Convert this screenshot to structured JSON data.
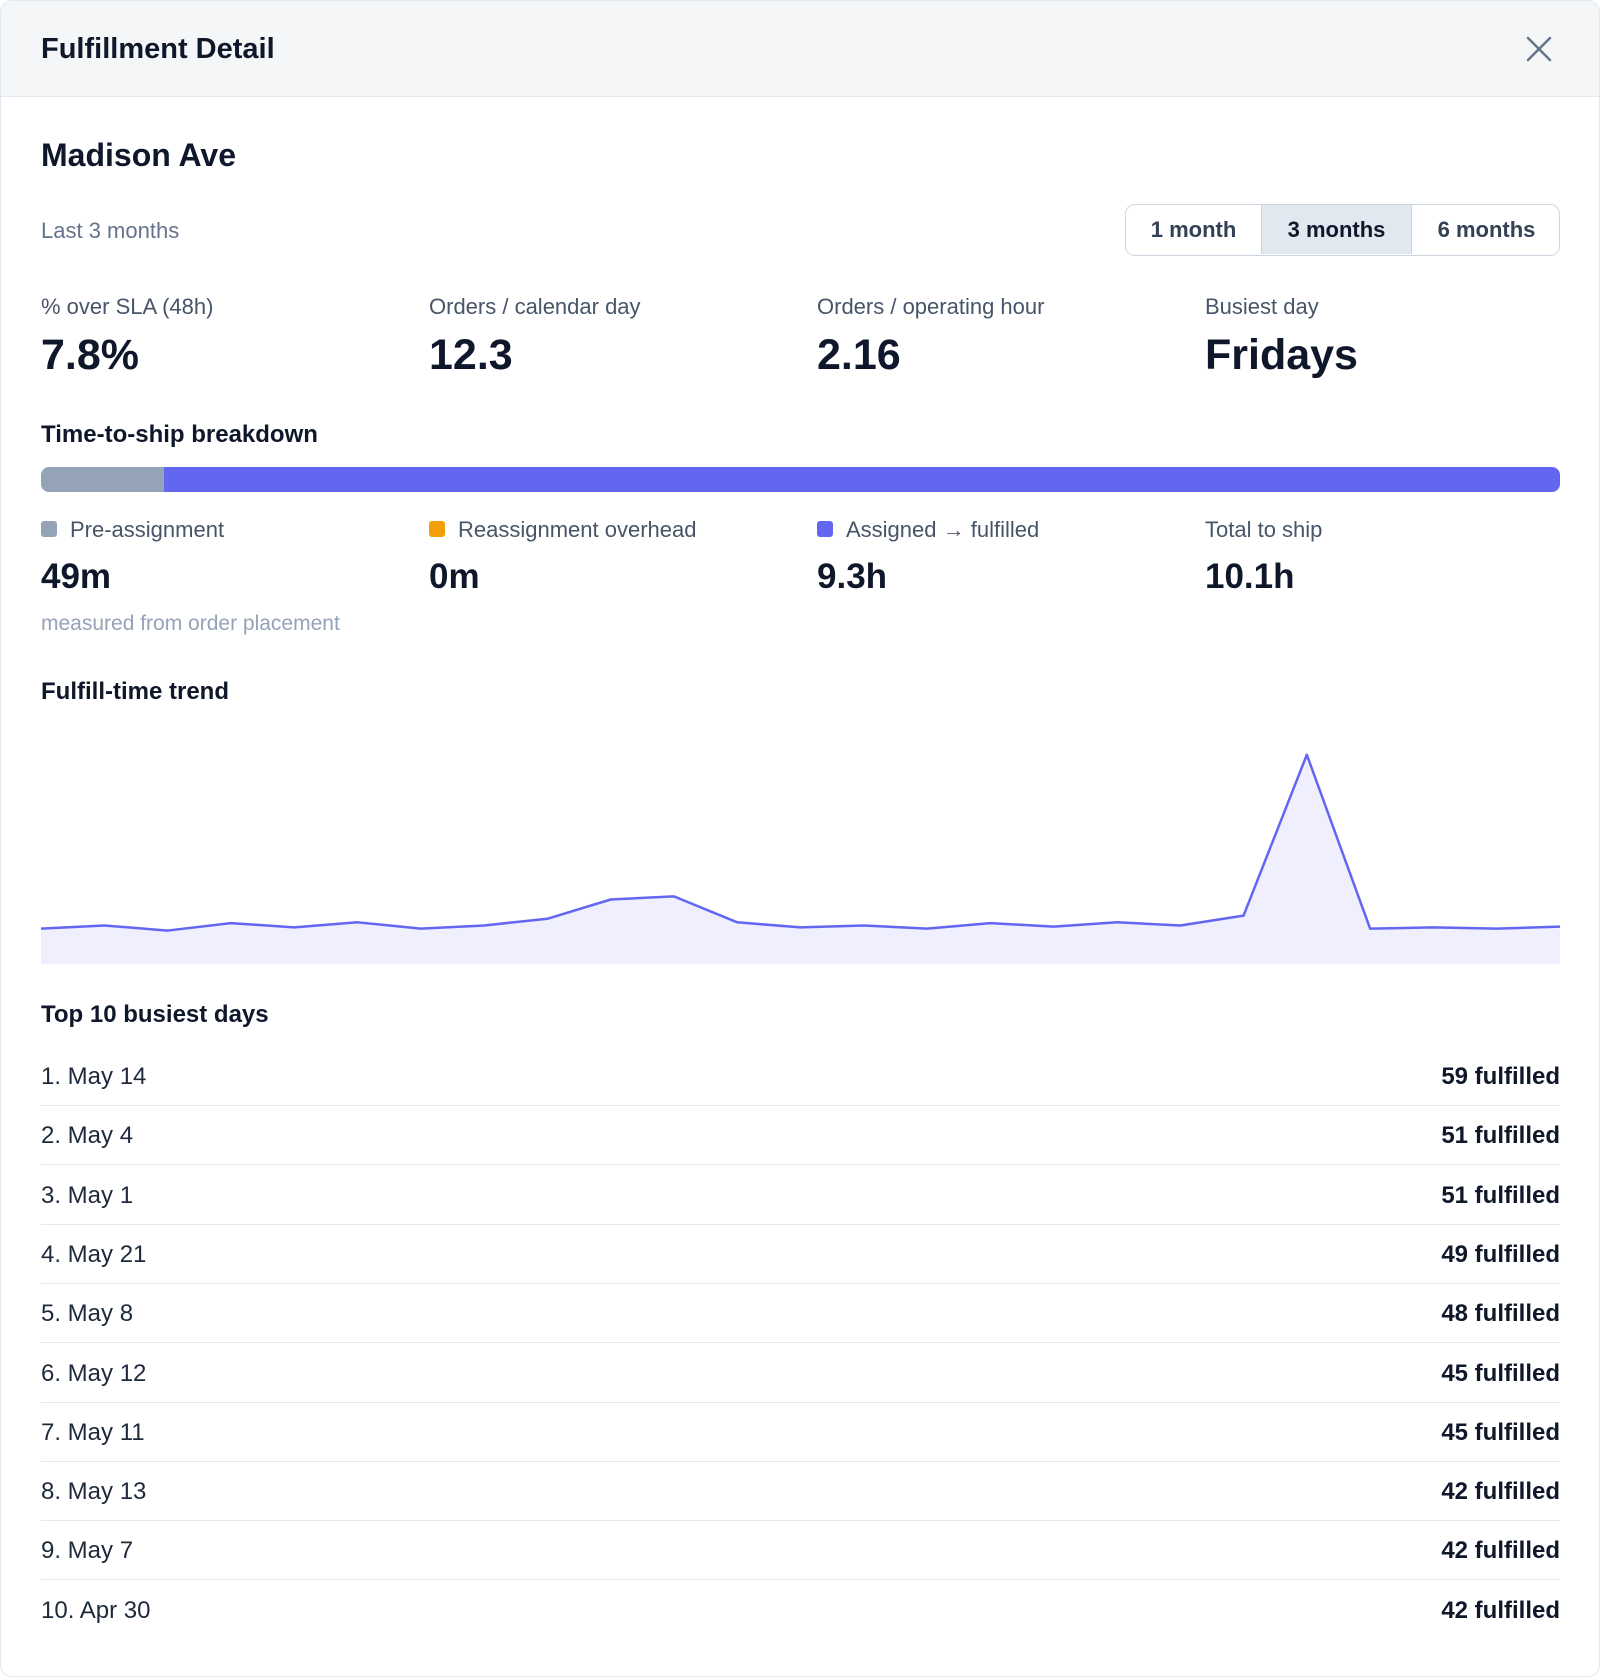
{
  "header": {
    "title": "Fulfillment Detail"
  },
  "location": "Madison Ave",
  "period": {
    "label": "Last 3 months",
    "options": [
      "1 month",
      "3 months",
      "6 months"
    ],
    "selected": 1
  },
  "stats": [
    {
      "label": "% over SLA (48h)",
      "value": "7.8%"
    },
    {
      "label": "Orders / calendar day",
      "value": "12.3"
    },
    {
      "label": "Orders / operating hour",
      "value": "2.16"
    },
    {
      "label": "Busiest day",
      "value": "Fridays"
    }
  ],
  "breakdown": {
    "title": "Time-to-ship breakdown",
    "segments": [
      {
        "name": "Pre-assignment",
        "color": "#94a3b8",
        "value": 49,
        "value_label": "49m"
      },
      {
        "name": "Reassignment overhead",
        "color": "#f59e0b",
        "value": 0,
        "value_label": "0m"
      },
      {
        "name": "Assigned → fulfilled",
        "color": "#6366f1",
        "value": 558,
        "value_label": "9.3h"
      }
    ],
    "total": {
      "label": "Total to ship",
      "value": "10.1h"
    },
    "note": "measured from order placement"
  },
  "chart_data": {
    "type": "area",
    "title": "Fulfill-time trend",
    "values": [
      9.0,
      9.8,
      8.5,
      10.4,
      9.3,
      10.6,
      9.0,
      9.8,
      11.5,
      16.4,
      17.2,
      10.6,
      9.3,
      9.8,
      9.0,
      10.4,
      9.5,
      10.6,
      9.8,
      12.3,
      53.2,
      9.0,
      9.3,
      9.0,
      9.5
    ],
    "ylim": [
      0,
      60
    ],
    "color": "#6366f1"
  },
  "top_days": {
    "title": "Top 10 busiest days",
    "rows": [
      {
        "day": "1. May 14",
        "count": "59 fulfilled"
      },
      {
        "day": "2. May 4",
        "count": "51 fulfilled"
      },
      {
        "day": "3. May 1",
        "count": "51 fulfilled"
      },
      {
        "day": "4. May 21",
        "count": "49 fulfilled"
      },
      {
        "day": "5. May 8",
        "count": "48 fulfilled"
      },
      {
        "day": "6. May 12",
        "count": "45 fulfilled"
      },
      {
        "day": "7. May 11",
        "count": "45 fulfilled"
      },
      {
        "day": "8. May 13",
        "count": "42 fulfilled"
      },
      {
        "day": "9. May 7",
        "count": "42 fulfilled"
      },
      {
        "day": "10. Apr 30",
        "count": "42 fulfilled"
      }
    ]
  }
}
